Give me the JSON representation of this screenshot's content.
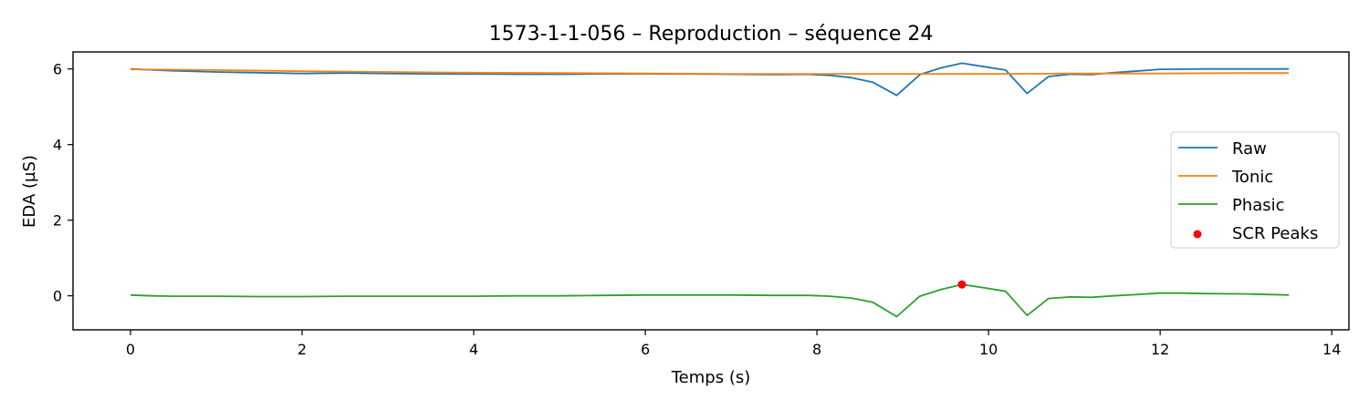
{
  "chart_data": {
    "type": "line",
    "title": "1573-1-1-056 – Reproduction – séquence 24",
    "xlabel": "Temps (s)",
    "ylabel": "EDA (µS)",
    "xlim": [
      -0.67,
      14.2
    ],
    "ylim": [
      -0.9,
      6.45
    ],
    "xticks": [
      0,
      2,
      4,
      6,
      8,
      10,
      12,
      14
    ],
    "yticks": [
      0,
      2,
      4,
      6
    ],
    "grid": false,
    "legend_position": "center-right",
    "series": [
      {
        "name": "Raw",
        "color": "#1f77b4",
        "x": [
          0,
          0.5,
          1.0,
          1.5,
          2.0,
          2.5,
          3.0,
          3.5,
          4.0,
          4.5,
          5.0,
          5.5,
          6.0,
          6.5,
          7.0,
          7.5,
          7.9,
          8.15,
          8.4,
          8.65,
          8.93,
          9.2,
          9.45,
          9.69,
          9.95,
          10.2,
          10.45,
          10.7,
          10.95,
          11.2,
          11.45,
          11.7,
          12.0,
          12.5,
          13.0,
          13.5
        ],
        "y": [
          6.0,
          5.95,
          5.92,
          5.9,
          5.88,
          5.89,
          5.88,
          5.87,
          5.87,
          5.86,
          5.86,
          5.87,
          5.87,
          5.87,
          5.86,
          5.85,
          5.86,
          5.83,
          5.77,
          5.65,
          5.3,
          5.85,
          6.03,
          6.15,
          6.06,
          5.97,
          5.35,
          5.8,
          5.86,
          5.85,
          5.9,
          5.94,
          5.99,
          6.0,
          6.0,
          6.0
        ]
      },
      {
        "name": "Tonic",
        "color": "#ff7f0e",
        "x": [
          0,
          1,
          2,
          3,
          4,
          5,
          6,
          7,
          8,
          9,
          10,
          11,
          12,
          13,
          13.5
        ],
        "y": [
          5.99,
          5.97,
          5.94,
          5.92,
          5.9,
          5.89,
          5.88,
          5.87,
          5.87,
          5.87,
          5.87,
          5.88,
          5.88,
          5.89,
          5.89
        ]
      },
      {
        "name": "Phasic",
        "color": "#2ca02c",
        "x": [
          0,
          0.25,
          0.5,
          0.75,
          1.0,
          1.5,
          2.0,
          2.5,
          3.0,
          3.5,
          4.0,
          4.5,
          5.0,
          5.5,
          6.0,
          6.5,
          7.0,
          7.5,
          7.9,
          8.15,
          8.4,
          8.65,
          8.93,
          9.2,
          9.45,
          9.69,
          9.95,
          10.2,
          10.45,
          10.7,
          10.95,
          11.2,
          11.45,
          11.7,
          12.0,
          12.25,
          12.5,
          13.0,
          13.5
        ],
        "y": [
          0.02,
          0.0,
          -0.01,
          -0.01,
          -0.01,
          -0.02,
          -0.02,
          -0.01,
          -0.01,
          -0.01,
          -0.01,
          0.0,
          0.0,
          0.01,
          0.02,
          0.02,
          0.02,
          0.01,
          0.01,
          -0.01,
          -0.06,
          -0.17,
          -0.55,
          -0.01,
          0.17,
          0.3,
          0.21,
          0.12,
          -0.52,
          -0.07,
          -0.03,
          -0.04,
          0.0,
          0.03,
          0.07,
          0.07,
          0.06,
          0.05,
          0.02
        ]
      }
    ],
    "peaks": {
      "name": "SCR Peaks",
      "color": "#ff0000",
      "x": [
        9.69
      ],
      "y": [
        0.3
      ]
    }
  }
}
